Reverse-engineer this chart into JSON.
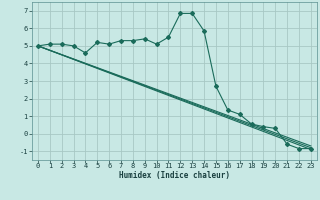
{
  "xlabel": "Humidex (Indice chaleur)",
  "background_color": "#c8e8e4",
  "grid_color": "#a8c8c4",
  "line_color": "#1a6b5a",
  "xlim": [
    -0.5,
    23.5
  ],
  "ylim": [
    -1.5,
    7.5
  ],
  "xticks": [
    0,
    1,
    2,
    3,
    4,
    5,
    6,
    7,
    8,
    9,
    10,
    11,
    12,
    13,
    14,
    15,
    16,
    17,
    18,
    19,
    20,
    21,
    22,
    23
  ],
  "yticks": [
    -1,
    0,
    1,
    2,
    3,
    4,
    5,
    6,
    7
  ],
  "main_series": {
    "x": [
      0,
      1,
      2,
      3,
      4,
      5,
      6,
      7,
      8,
      9,
      10,
      11,
      12,
      13,
      14,
      15,
      16,
      17,
      18,
      19,
      20,
      21,
      22,
      23
    ],
    "y": [
      5.0,
      5.1,
      5.1,
      5.0,
      4.6,
      5.2,
      5.1,
      5.3,
      5.3,
      5.4,
      5.1,
      5.5,
      6.85,
      6.85,
      5.85,
      2.7,
      1.35,
      1.1,
      0.55,
      0.4,
      0.3,
      -0.6,
      -0.85,
      -0.85
    ]
  },
  "trend_lines": [
    {
      "x": [
        0,
        23
      ],
      "y": [
        5.0,
        -0.7
      ]
    },
    {
      "x": [
        0,
        23
      ],
      "y": [
        5.0,
        -0.8
      ]
    },
    {
      "x": [
        0,
        23
      ],
      "y": [
        5.0,
        -0.9
      ]
    }
  ],
  "xlabel_fontsize": 5.5,
  "tick_fontsize": 5.0
}
